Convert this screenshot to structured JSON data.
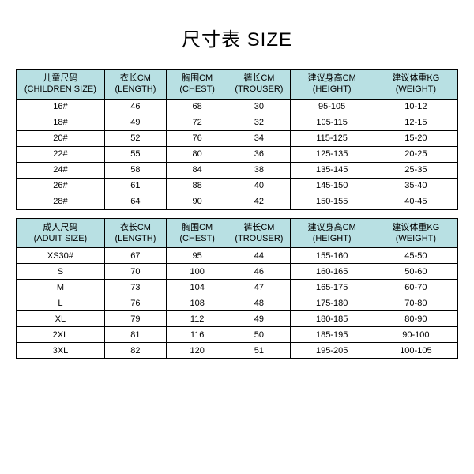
{
  "title": "尺寸表 SIZE",
  "tables": [
    {
      "header": [
        {
          "cn": "儿童尺码",
          "en": "(CHILDREN SIZE)"
        },
        {
          "cn": "衣长CM",
          "en": "(LENGTH)"
        },
        {
          "cn": "胸围CM",
          "en": "(CHEST)"
        },
        {
          "cn": "裤长CM",
          "en": "(TROUSER)"
        },
        {
          "cn": "建议身高CM",
          "en": "(HEIGHT)"
        },
        {
          "cn": "建议体重KG",
          "en": "(WEIGHT)"
        }
      ],
      "rows": [
        [
          "16#",
          "46",
          "68",
          "30",
          "95-105",
          "10-12"
        ],
        [
          "18#",
          "49",
          "72",
          "32",
          "105-115",
          "12-15"
        ],
        [
          "20#",
          "52",
          "76",
          "34",
          "115-125",
          "15-20"
        ],
        [
          "22#",
          "55",
          "80",
          "36",
          "125-135",
          "20-25"
        ],
        [
          "24#",
          "58",
          "84",
          "38",
          "135-145",
          "25-35"
        ],
        [
          "26#",
          "61",
          "88",
          "40",
          "145-150",
          "35-40"
        ],
        [
          "28#",
          "64",
          "90",
          "42",
          "150-155",
          "40-45"
        ]
      ]
    },
    {
      "header": [
        {
          "cn": "成人尺码",
          "en": "(ADUIT SIZE)"
        },
        {
          "cn": "衣长CM",
          "en": "(LENGTH)"
        },
        {
          "cn": "胸围CM",
          "en": "(CHEST)"
        },
        {
          "cn": "裤长CM",
          "en": "(TROUSER)"
        },
        {
          "cn": "建议身高CM",
          "en": "(HEIGHT)"
        },
        {
          "cn": "建议体重KG",
          "en": "(WEIGHT)"
        }
      ],
      "rows": [
        [
          "XS30#",
          "67",
          "95",
          "44",
          "155-160",
          "45-50"
        ],
        [
          "S",
          "70",
          "100",
          "46",
          "160-165",
          "50-60"
        ],
        [
          "M",
          "73",
          "104",
          "47",
          "165-175",
          "60-70"
        ],
        [
          "L",
          "76",
          "108",
          "48",
          "175-180",
          "70-80"
        ],
        [
          "XL",
          "79",
          "112",
          "49",
          "180-185",
          "80-90"
        ],
        [
          "2XL",
          "81",
          "116",
          "50",
          "185-195",
          "90-100"
        ],
        [
          "3XL",
          "82",
          "120",
          "51",
          "195-205",
          "100-105"
        ]
      ]
    }
  ],
  "style": {
    "header_bg": "#b8e0e3",
    "border_color": "#000000",
    "title_fontsize": 24,
    "cell_fontsize": 11,
    "col_widths_pct": [
      20,
      14,
      14,
      14,
      19,
      19
    ]
  }
}
